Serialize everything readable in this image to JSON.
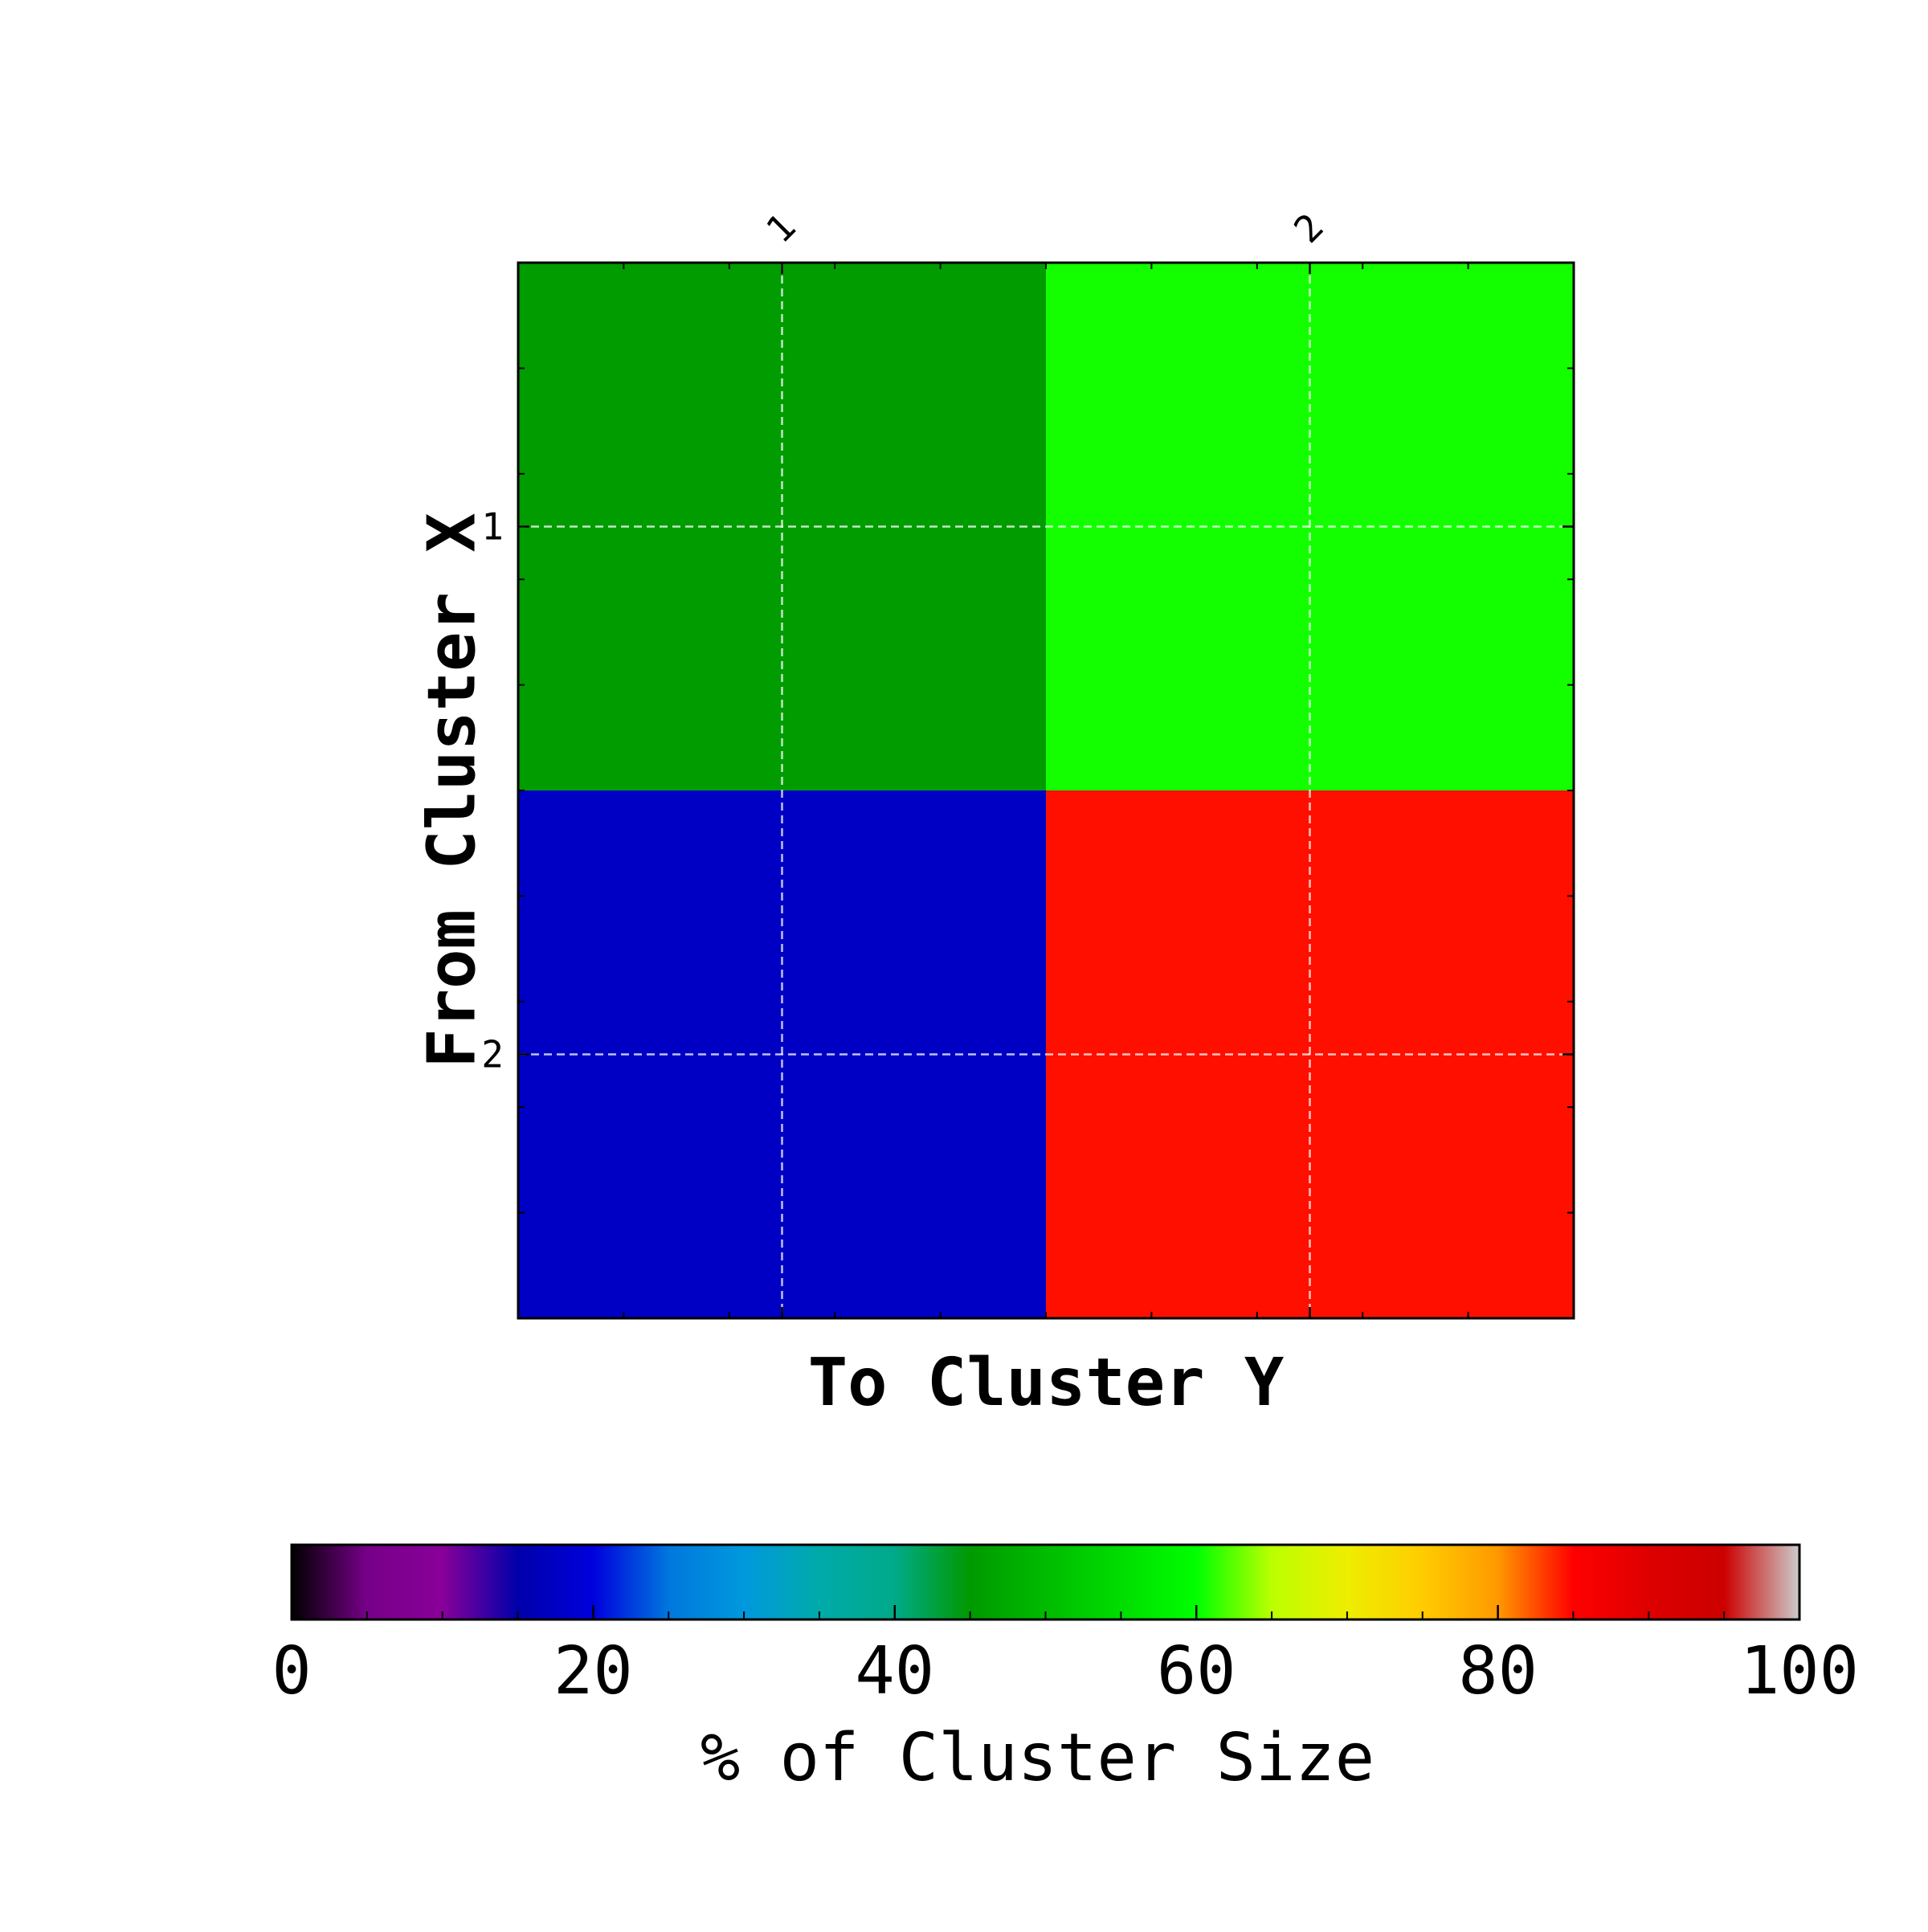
{
  "chart_data": {
    "type": "heatmap",
    "title": "",
    "xlabel": "To Cluster Y",
    "ylabel": "From Cluster X",
    "x_categories": [
      "1",
      "2"
    ],
    "y_categories": [
      "1",
      "2"
    ],
    "values": [
      [
        45.5,
        60.5
      ],
      [
        17.5,
        84.5
      ]
    ],
    "grid": true,
    "colorbar": {
      "label": "% of Cluster Size",
      "range": [
        0,
        100
      ],
      "ticks": [
        "0",
        "20",
        "40",
        "60",
        "80",
        "100"
      ],
      "position": "bottom",
      "colormap": "nipy_spectral"
    }
  }
}
